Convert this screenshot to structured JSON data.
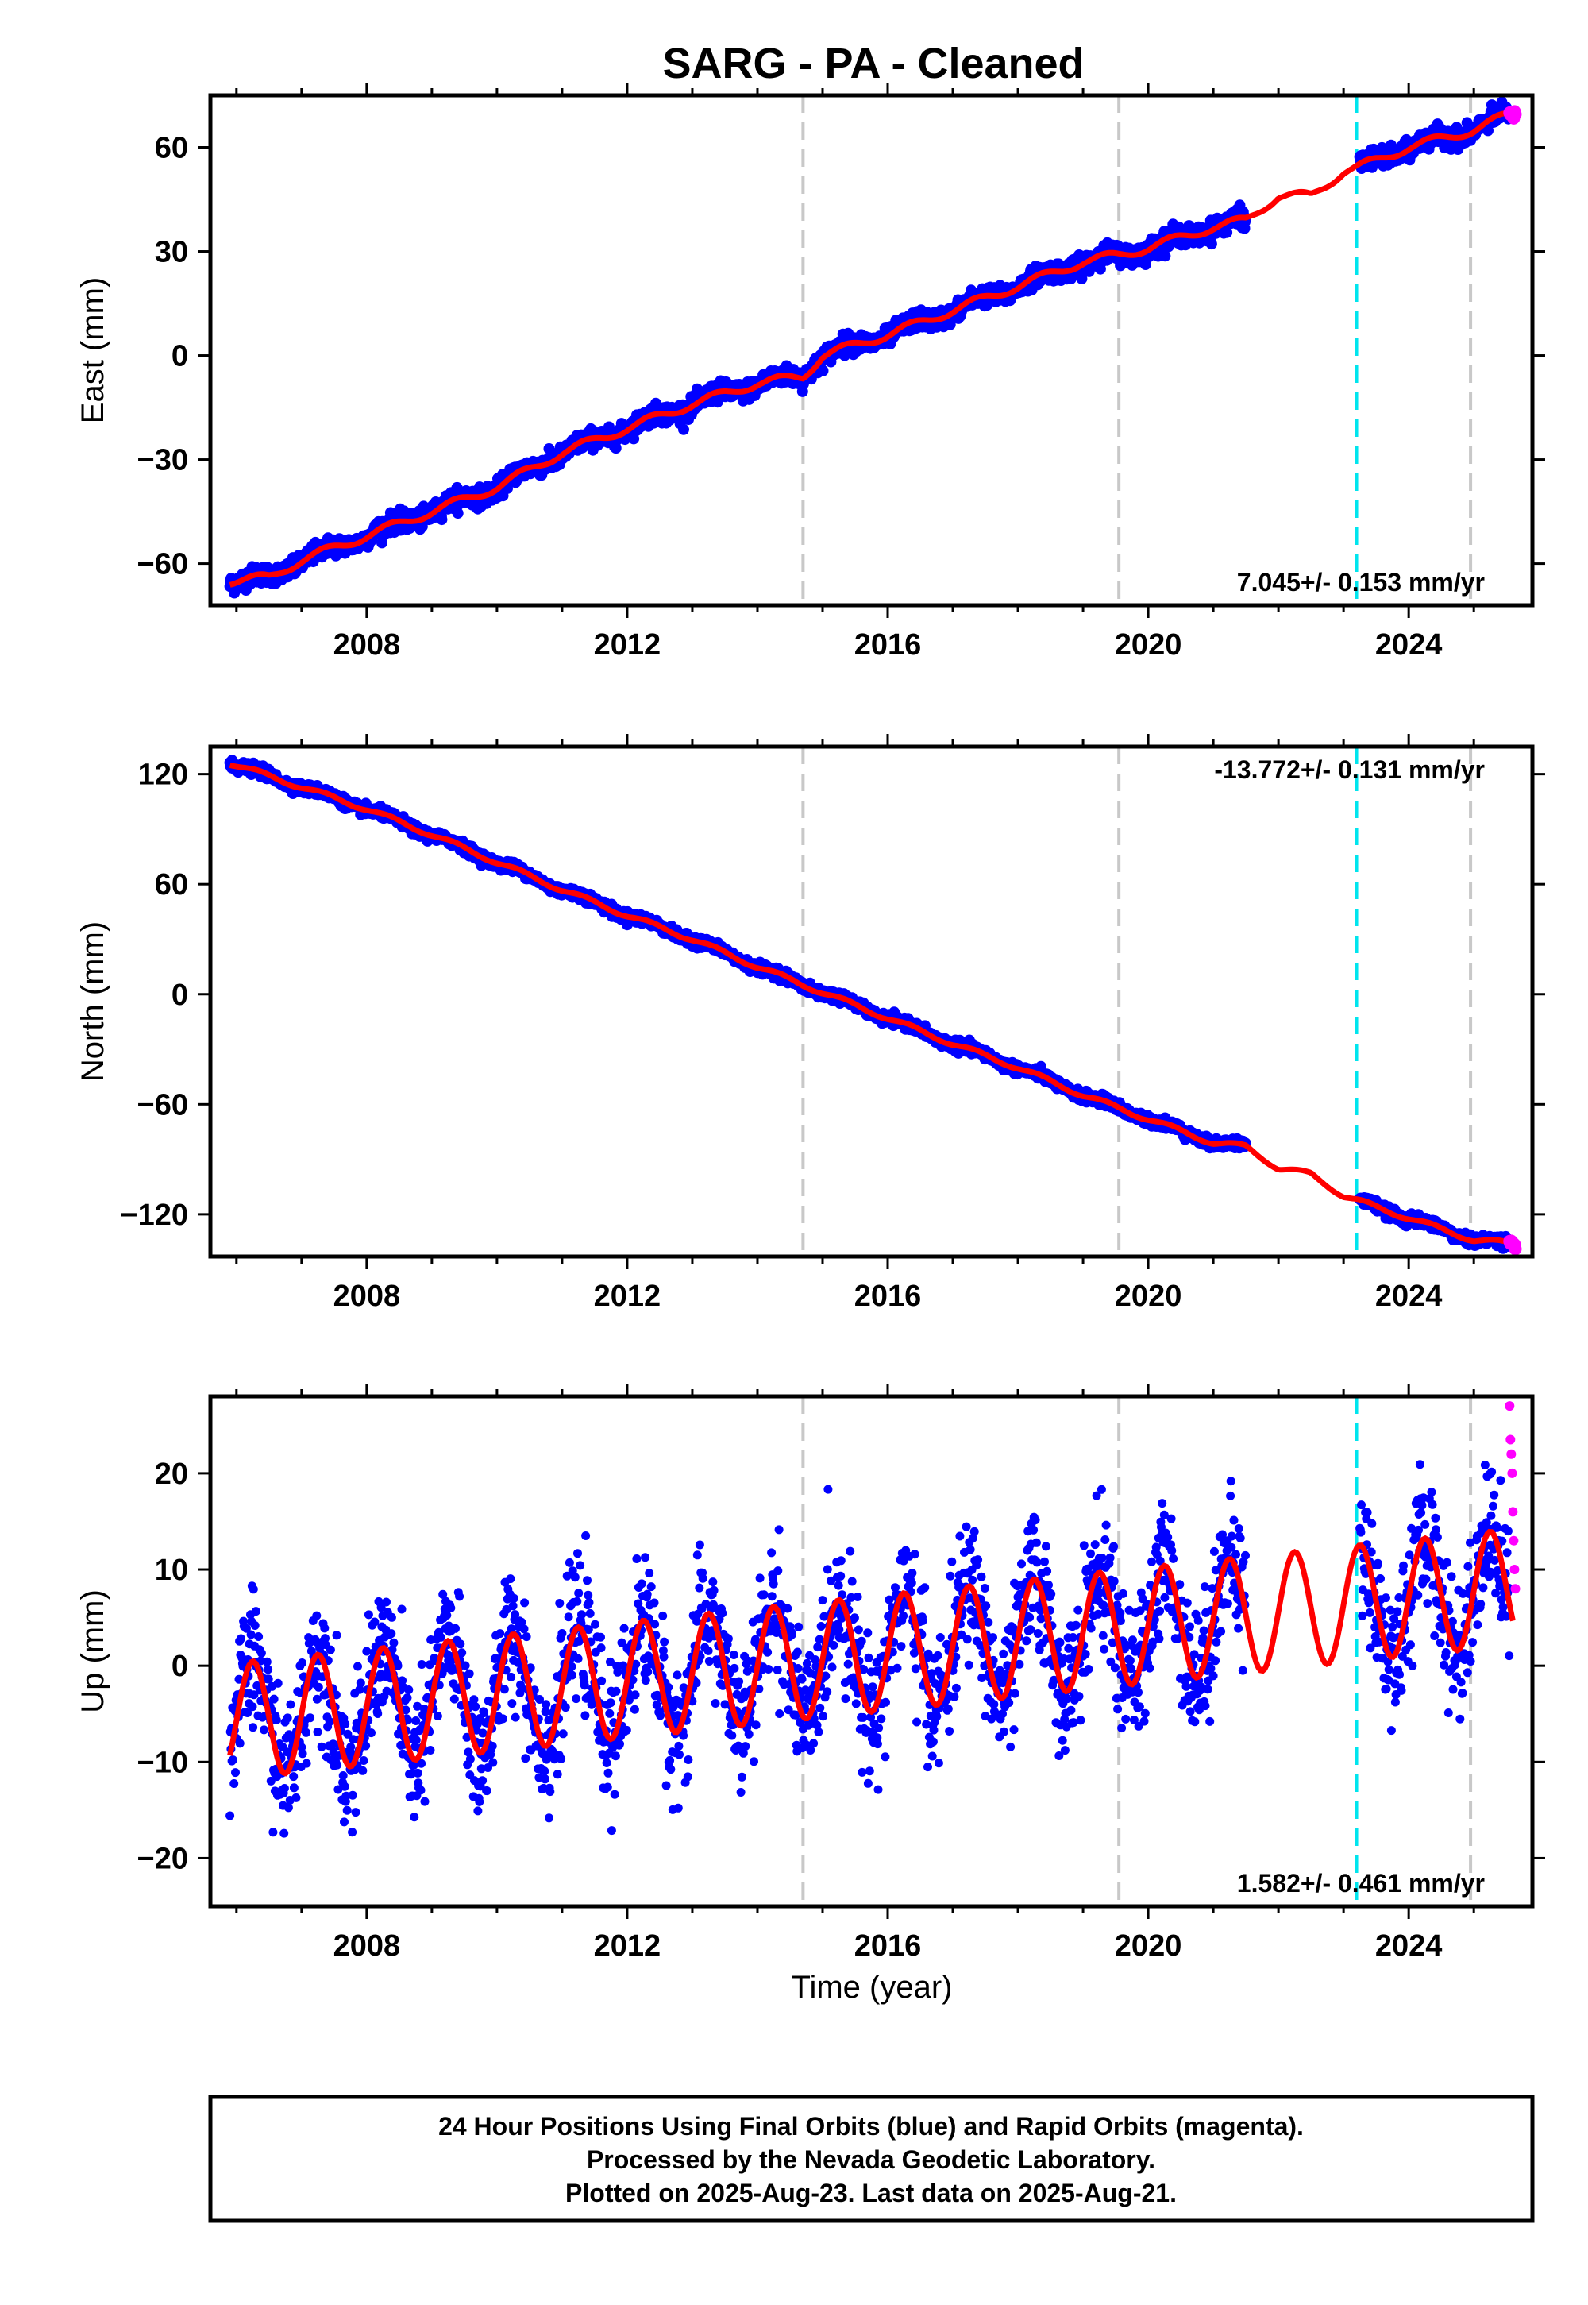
{
  "title": "SARG  - PA - Cleaned",
  "xlabel": "Time (year)",
  "x_ticks": [
    2008,
    2012,
    2016,
    2020,
    2024
  ],
  "colors": {
    "final": "#0000ff",
    "rapid": "#ff00ff",
    "model": "#ff0000",
    "break_gray": "#c8c8c8",
    "break_cyan": "#00e5ee"
  },
  "breaks_gray": [
    2014.7,
    2019.55,
    2024.95
  ],
  "breaks_cyan": [
    2023.2
  ],
  "footer": [
    "24 Hour Positions Using Final Orbits (blue) and Rapid Orbits (magenta).",
    "Processed by the Nevada Geodetic Laboratory.",
    "Plotted on 2025-Aug-23. Last data on 2025-Aug-21."
  ],
  "chart_data": [
    {
      "type": "scatter",
      "ylabel": "East (mm)",
      "rate_label": "7.045+/- 0.153 mm/yr",
      "xlim": [
        2005.6,
        2025.9
      ],
      "ylim": [
        -72,
        75
      ],
      "y_ticks": [
        -60,
        -30,
        0,
        30,
        60
      ],
      "final_data_range": [
        [
          2005.9,
          2021.5
        ],
        [
          2023.25,
          2025.55
        ]
      ],
      "rapid_data_range": [
        2025.55,
        2025.65
      ],
      "model": {
        "x": [
          2005.9,
          2006.5,
          2007.0,
          2008.0,
          2009.0,
          2010.0,
          2011.0,
          2012.0,
          2013.0,
          2014.0,
          2014.7,
          2015.0,
          2016.0,
          2017.0,
          2018.0,
          2019.0,
          2019.55,
          2020.0,
          2021.0,
          2021.5,
          2022.0,
          2022.5,
          2023.0,
          2023.2,
          2024.0,
          2025.0,
          2025.6
        ],
        "y": [
          -65,
          -64,
          -59,
          -52,
          -45,
          -38,
          -28,
          -21,
          -14,
          -8,
          -6,
          0,
          6,
          13,
          20,
          27,
          29,
          31,
          37,
          39,
          46,
          46,
          53,
          54,
          60,
          65,
          70
        ]
      }
    },
    {
      "type": "scatter",
      "ylabel": "North (mm)",
      "rate_label": "-13.772+/- 0.131 mm/yr",
      "xlim": [
        2005.6,
        2025.9
      ],
      "ylim": [
        -143,
        135
      ],
      "y_ticks": [
        -120,
        -60,
        0,
        60,
        120
      ],
      "final_data_range": [
        [
          2005.9,
          2021.5
        ],
        [
          2023.25,
          2025.55
        ]
      ],
      "rapid_data_range": [
        2025.55,
        2025.65
      ],
      "model": {
        "x": [
          2005.9,
          2007.0,
          2008.0,
          2009.0,
          2010.0,
          2011.0,
          2012.0,
          2013.0,
          2014.0,
          2015.0,
          2016.0,
          2017.0,
          2018.0,
          2019.0,
          2020.0,
          2021.0,
          2021.5,
          2022.0,
          2022.5,
          2023.0,
          2024.0,
          2025.0,
          2025.6
        ],
        "y": [
          126,
          113,
          101,
          87,
          72,
          57,
          43,
          30,
          15,
          1,
          -13,
          -27,
          -40,
          -55,
          -68,
          -81,
          -83,
          -95,
          -98,
          -110,
          -122,
          -134,
          -136
        ]
      }
    },
    {
      "type": "scatter",
      "ylabel": "Up (mm)",
      "rate_label": "1.582+/- 0.461 mm/yr",
      "xlim": [
        2005.6,
        2025.9
      ],
      "ylim": [
        -25,
        28
      ],
      "y_ticks": [
        -20,
        -10,
        0,
        10,
        20
      ],
      "final_data_range": [
        [
          2005.9,
          2021.5
        ],
        [
          2023.25,
          2025.55
        ]
      ],
      "rapid_data_range": [
        2025.55,
        2025.65
      ],
      "rapid_values": [
        27,
        23.5,
        22,
        20,
        16,
        13,
        10,
        8
      ],
      "model": {
        "trend_start": -5.8,
        "trend_end": 8.2,
        "amplitude": 6.0,
        "x_start": 2005.9,
        "x_end": 2025.6
      }
    }
  ]
}
